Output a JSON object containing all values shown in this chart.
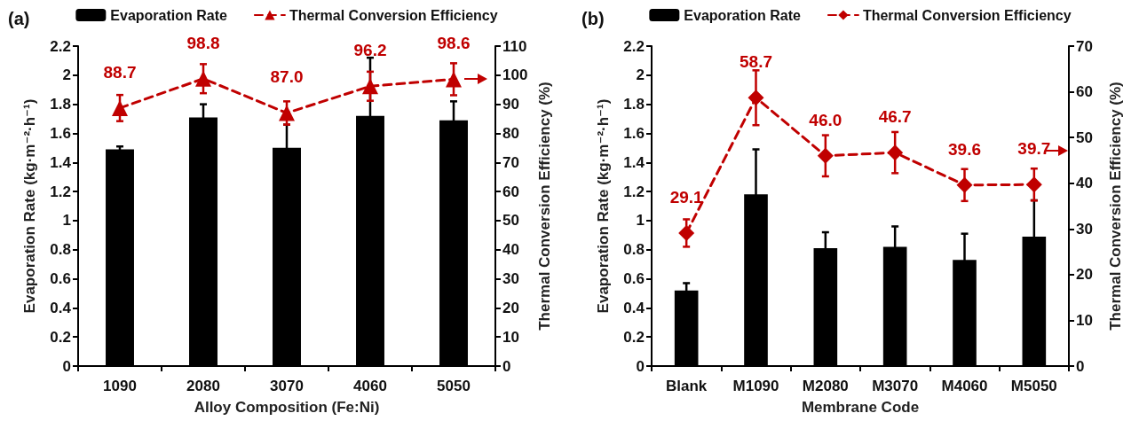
{
  "chart_data": [
    {
      "type": "bar",
      "title": "(a)",
      "xlabel": "Alloy Composition (Fe:Ni)",
      "ylabel": "Evaporation Rate (kg·m⁻²·h⁻¹)",
      "y2label": "Thermal Conversion Efficiency (%)",
      "categories": [
        "1090",
        "2080",
        "3070",
        "4060",
        "5050"
      ],
      "series": [
        {
          "name": "Evaporation Rate",
          "color": "#000000",
          "values": [
            1.49,
            1.71,
            1.5,
            1.72,
            1.69
          ],
          "errors": [
            0.02,
            0.09,
            0.16,
            0.4,
            0.13
          ]
        },
        {
          "name": "Thermal Conversion Efficiency",
          "type": "line",
          "axis": "y2",
          "color": "#c00000",
          "marker": "triangle",
          "line_style": "dashed",
          "values": [
            88.7,
            98.8,
            87.0,
            96.2,
            98.6
          ],
          "errors": [
            4.5,
            5,
            4,
            5,
            5.5
          ],
          "value_labels": [
            "88.7",
            "98.8",
            "87.0",
            "96.2",
            "98.6"
          ]
        }
      ],
      "ylim": [
        0,
        2.2
      ],
      "yticks": [
        0,
        0.2,
        0.4,
        0.6,
        0.8,
        1,
        1.2,
        1.4,
        1.6,
        1.8,
        2,
        2.2
      ],
      "y2lim": [
        0,
        110
      ],
      "y2ticks": [
        0,
        10,
        20,
        30,
        40,
        50,
        60,
        70,
        80,
        90,
        100,
        110
      ],
      "grid": false,
      "legend": "top"
    },
    {
      "type": "bar",
      "title": "(b)",
      "xlabel": "Membrane Code",
      "ylabel": "Evaporation Rate (kg·m⁻²·h⁻¹)",
      "y2label": "Thermal Conversion Efficiency (%)",
      "categories": [
        "Blank",
        "M1090",
        "M2080",
        "M3070",
        "M4060",
        "M5050"
      ],
      "series": [
        {
          "name": "Evaporation Rate",
          "color": "#000000",
          "values": [
            0.52,
            1.18,
            0.81,
            0.82,
            0.73,
            0.89
          ],
          "errors": [
            0.05,
            0.31,
            0.11,
            0.14,
            0.18,
            0.25
          ]
        },
        {
          "name": "Thermal Conversion Efficiency",
          "type": "line",
          "axis": "y2",
          "color": "#c00000",
          "marker": "diamond",
          "line_style": "dashed",
          "values": [
            29.1,
            58.7,
            46.0,
            46.7,
            39.6,
            39.7
          ],
          "errors": [
            3,
            6,
            4.5,
            4.5,
            3.5,
            3.5
          ],
          "value_labels": [
            "29.1",
            "58.7",
            "46.0",
            "46.7",
            "39.6",
            "39.7"
          ]
        }
      ],
      "ylim": [
        0,
        2.2
      ],
      "yticks": [
        0,
        0.2,
        0.4,
        0.6,
        0.8,
        1,
        1.2,
        1.4,
        1.6,
        1.8,
        2,
        2.2
      ],
      "y2lim": [
        0,
        70
      ],
      "y2ticks": [
        0,
        10,
        20,
        30,
        40,
        50,
        60,
        70
      ],
      "grid": false,
      "legend": "top"
    }
  ]
}
